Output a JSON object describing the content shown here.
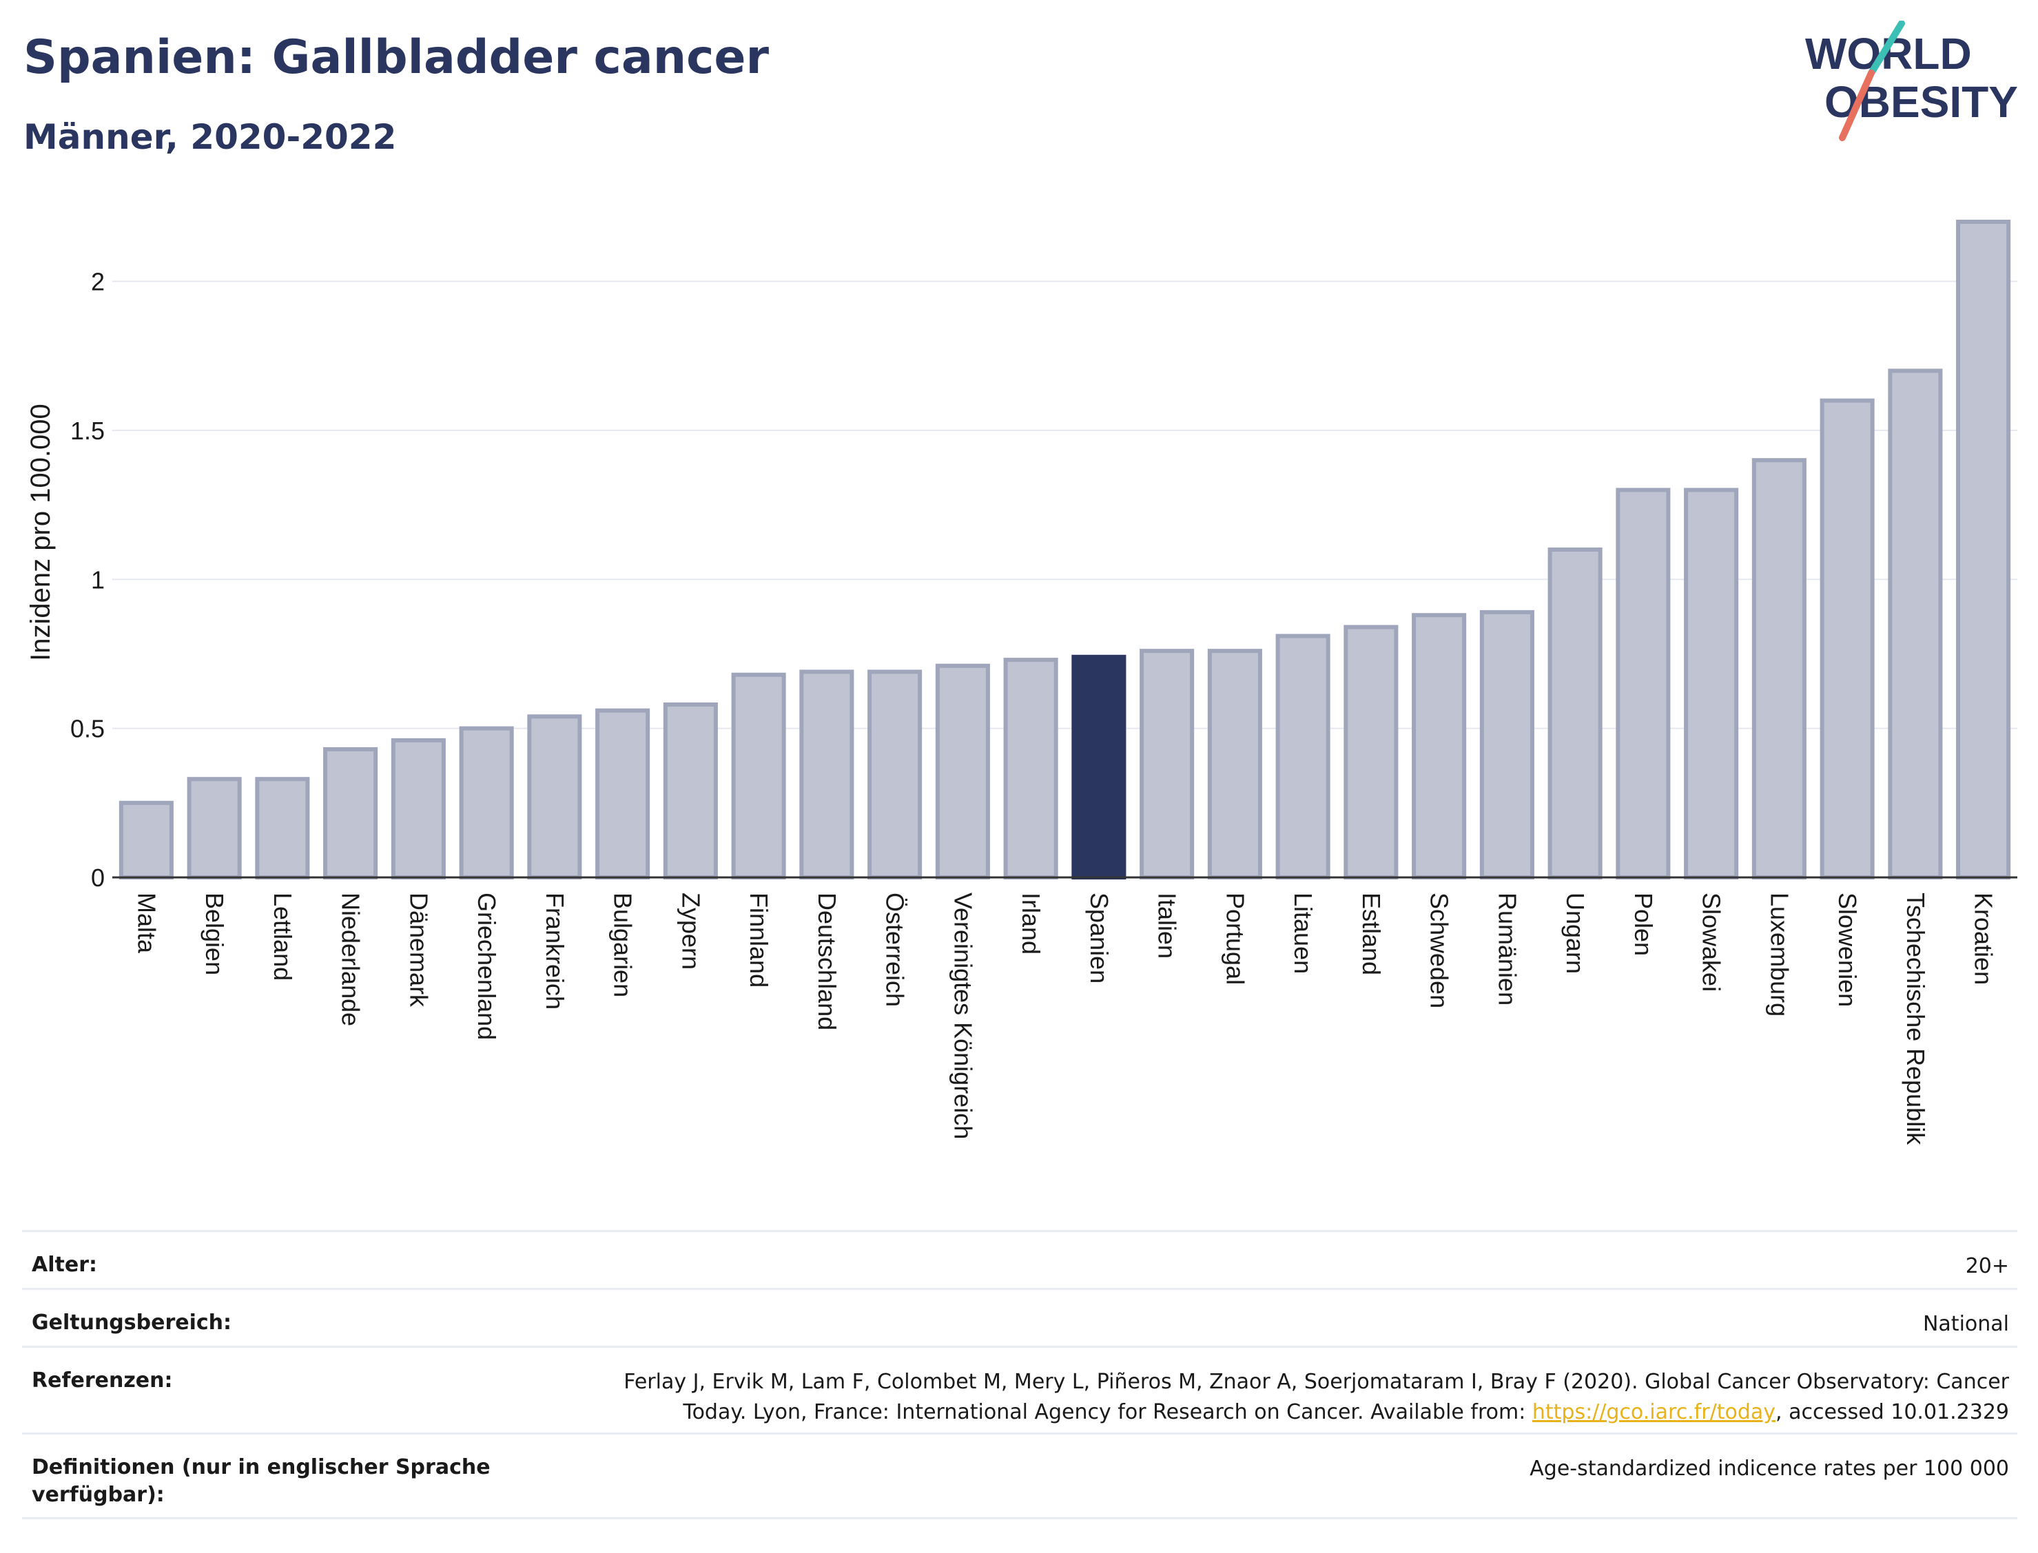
{
  "header": {
    "title": "Spanien: Gallbladder cancer",
    "subtitle": "Männer, 2020-2022"
  },
  "logo": {
    "line1": "WORLD",
    "line2": "OBESITY"
  },
  "chart_data": {
    "type": "bar",
    "ylabel": "Inzidenz pro 100.000",
    "ylim": [
      0,
      2.2
    ],
    "yticks": [
      0,
      0.5,
      1,
      1.5,
      2
    ],
    "ytick_labels": [
      "0",
      "0.5",
      "1",
      "1.5",
      "2"
    ],
    "grid": true,
    "highlight": "Spanien",
    "colors": {
      "bar": "#c0c4d2",
      "bar_border": "#9fa5bb",
      "highlight": "#2a3560",
      "grid": "#e6e8ef",
      "axis": "#333333"
    },
    "categories": [
      "Malta",
      "Belgien",
      "Lettland",
      "Niederlande",
      "Dänemark",
      "Griechenland",
      "Frankreich",
      "Bulgarien",
      "Zypern",
      "Finnland",
      "Deutschland",
      "Österreich",
      "Vereinigtes Königreich",
      "Irland",
      "Spanien",
      "Italien",
      "Portugal",
      "Litauen",
      "Estland",
      "Schweden",
      "Rumänien",
      "Ungarn",
      "Polen",
      "Slowakei",
      "Luxemburg",
      "Slowenien",
      "Tschechische Republik",
      "Kroatien"
    ],
    "values": [
      0.25,
      0.33,
      0.33,
      0.43,
      0.46,
      0.5,
      0.54,
      0.56,
      0.58,
      0.68,
      0.69,
      0.69,
      0.71,
      0.73,
      0.74,
      0.76,
      0.76,
      0.81,
      0.84,
      0.88,
      0.89,
      1.1,
      1.3,
      1.3,
      1.4,
      1.6,
      1.7,
      2.2
    ]
  },
  "meta": {
    "age_label": "Alter:",
    "age_value": "20+",
    "scope_label": "Geltungsbereich:",
    "scope_value": "National",
    "references_label": "Referenzen:",
    "references_line1": "Ferlay J, Ervik M, Lam F, Colombet M, Mery L, Piñeros M, Znaor A, Soerjomataram I, Bray F (2020). Global Cancer Observatory: Cancer",
    "references_line2_pre": "Today. Lyon, France: International Agency for Research on Cancer. Available from: ",
    "references_link": "https://gco.iarc.fr/today",
    "references_line2_post": ", accessed 10.01.2329",
    "definitions_label": "Definitionen (nur in englischer Sprache verfügbar):",
    "definitions_value": "Age-standardized indicence rates per 100 000"
  }
}
